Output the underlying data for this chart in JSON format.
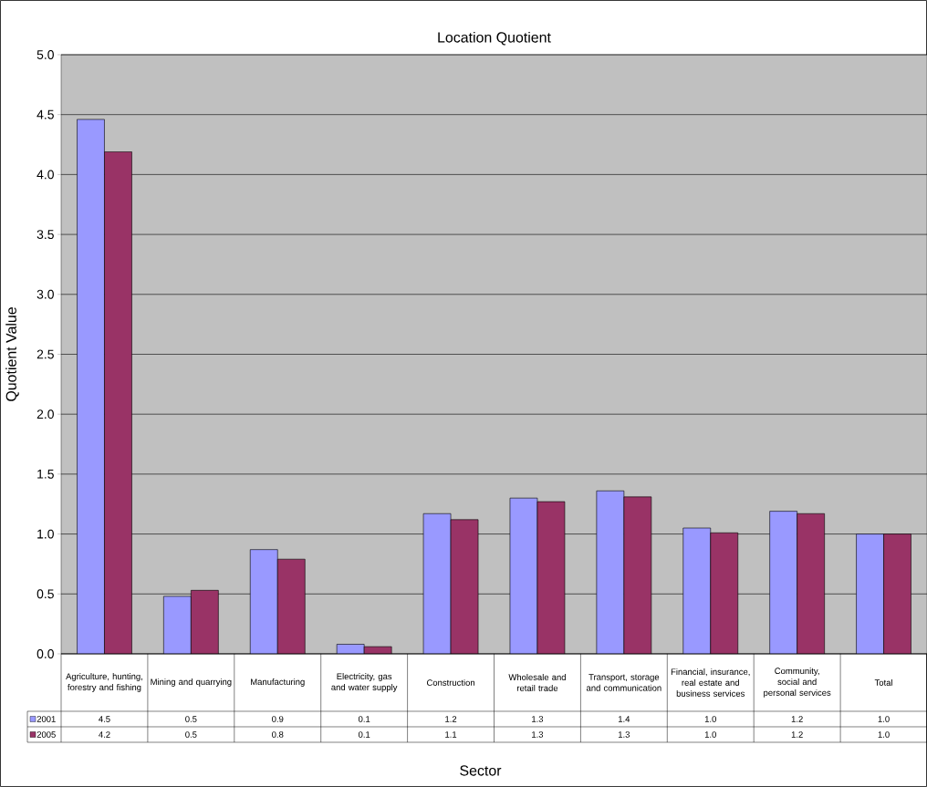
{
  "chart_data": {
    "type": "bar",
    "title": "Location Quotient",
    "xlabel": "Sector",
    "ylabel": "Quotient Value",
    "categories": [
      "Agriculture, hunting, forestry and fishing",
      "Mining and quarrying",
      "Manufacturing",
      "Electricity, gas and water supply",
      "Construction",
      "Wholesale and retail trade",
      "Transport, storage and communication",
      "Financial, insurance, real estate and business services",
      "Community, social and personal services",
      "Total"
    ],
    "series": [
      {
        "name": "2001",
        "color": "#9999ff",
        "values": [
          4.46,
          0.48,
          0.87,
          0.08,
          1.17,
          1.3,
          1.36,
          1.05,
          1.19,
          1.0
        ],
        "value_labels": [
          "4.5",
          "0.5",
          "0.9",
          "0.1",
          "1.2",
          "1.3",
          "1.4",
          "1.0",
          "1.2",
          "1.0"
        ]
      },
      {
        "name": "2005",
        "color": "#993366",
        "values": [
          4.19,
          0.53,
          0.79,
          0.06,
          1.12,
          1.27,
          1.31,
          1.01,
          1.17,
          1.0
        ],
        "value_labels": [
          "4.2",
          "0.5",
          "0.8",
          "0.1",
          "1.1",
          "1.3",
          "1.3",
          "1.0",
          "1.2",
          "1.0"
        ]
      }
    ],
    "ylim": [
      0,
      5
    ],
    "yticks": [
      {
        "value": 0,
        "label": "0.0"
      },
      {
        "value": 0.5,
        "label": "0.5"
      },
      {
        "value": 1,
        "label": "1.0"
      },
      {
        "value": 1.5,
        "label": "1.5"
      },
      {
        "value": 2,
        "label": "2.0"
      },
      {
        "value": 2.5,
        "label": "2.5"
      },
      {
        "value": 3,
        "label": "3.0"
      },
      {
        "value": 3.5,
        "label": "3.5"
      },
      {
        "value": 4,
        "label": "4.0"
      },
      {
        "value": 4.5,
        "label": "4.5"
      },
      {
        "value": 5,
        "label": "5.0"
      }
    ],
    "grid": "y",
    "legend": "bottom"
  }
}
